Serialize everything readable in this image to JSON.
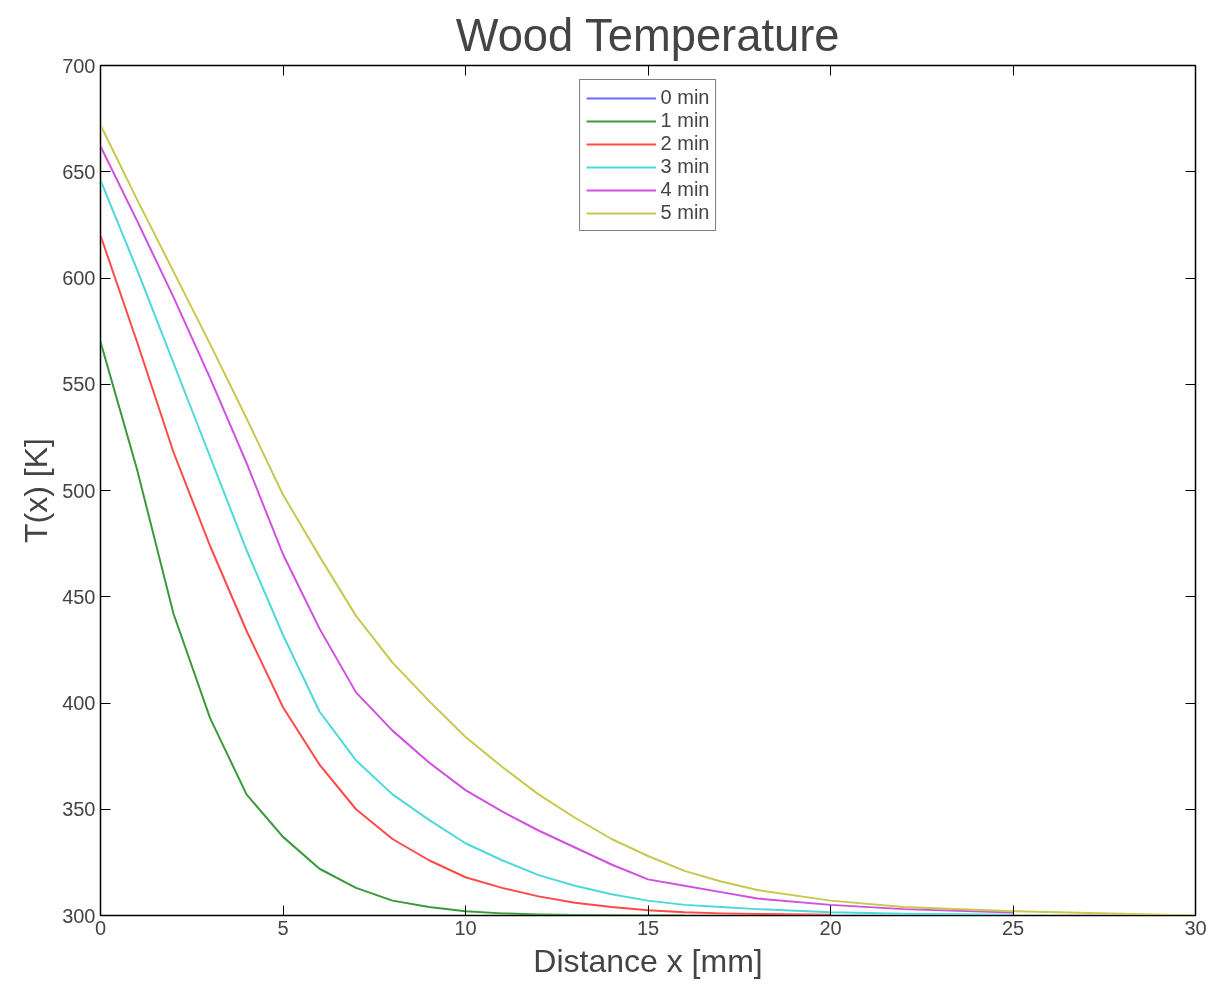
{
  "chart_data": {
    "type": "line",
    "title": "Wood Temperature",
    "xlabel": "Distance x [mm]",
    "ylabel": "T(x) [K]",
    "x": [
      0,
      1,
      2,
      3,
      4,
      5,
      6,
      7,
      8,
      9,
      10,
      11,
      12,
      13,
      14,
      15,
      16,
      17,
      18,
      20,
      22,
      25,
      30
    ],
    "xlim": [
      0,
      30
    ],
    "xticks": [
      0,
      5,
      10,
      15,
      20,
      25,
      30
    ],
    "ylim": [
      300,
      700
    ],
    "yticks": [
      300,
      350,
      400,
      450,
      500,
      550,
      600,
      650,
      700
    ],
    "grid": false,
    "legend": "top",
    "series": [
      {
        "name": "0 min",
        "color": "#6b6bff",
        "values": [
          null,
          null,
          null,
          null,
          null,
          null,
          null,
          null,
          null,
          null,
          null,
          null,
          null,
          null,
          null,
          null,
          null,
          null,
          null,
          null,
          null,
          null,
          null
        ]
      },
      {
        "name": "1 min",
        "color": "#3a9a3a",
        "values": [
          570,
          510,
          442,
          393,
          357,
          337,
          322,
          313,
          307,
          304,
          302,
          301,
          300.5,
          300.2,
          300.1,
          300,
          300,
          null,
          null,
          null,
          null,
          null,
          null
        ]
      },
      {
        "name": "2 min",
        "color": "#ff4a4a",
        "values": [
          620,
          570,
          518,
          474,
          434,
          398,
          371,
          350,
          336,
          326,
          318,
          313,
          309,
          306,
          304,
          302.5,
          301.5,
          301,
          300.7,
          300.3,
          null,
          null,
          null
        ]
      },
      {
        "name": "3 min",
        "color": "#4dd9d9",
        "values": [
          646,
          604,
          560,
          516,
          472,
          432,
          396,
          373,
          357,
          345,
          334,
          326,
          319,
          314,
          310,
          307,
          305,
          304,
          303,
          301.5,
          300.8,
          300.3,
          null
        ]
      },
      {
        "name": "4 min",
        "color": "#d050e0",
        "values": [
          662,
          627,
          591,
          553,
          513,
          470,
          435,
          405,
          387,
          372,
          359,
          349,
          340,
          332,
          324,
          317,
          314,
          311,
          308,
          305,
          303,
          301.4,
          null
        ]
      },
      {
        "name": "5 min",
        "color": "#c8c850",
        "values": [
          672,
          637,
          603,
          569,
          534,
          498,
          469,
          441,
          419,
          401,
          384,
          370,
          357,
          346,
          336,
          328,
          321,
          316,
          312,
          307,
          304,
          302,
          300
        ]
      }
    ]
  }
}
